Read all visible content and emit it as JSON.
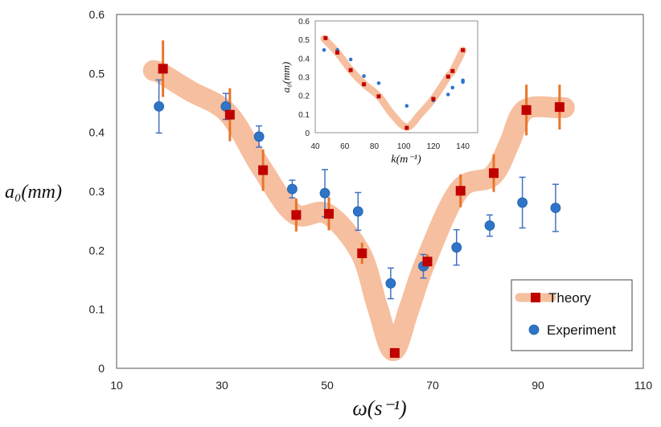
{
  "chart_data": [
    {
      "type": "scatter",
      "role": "main",
      "xlabel": "ω(s⁻¹)",
      "ylabel": "a₀(mm)",
      "xlim": [
        10,
        110
      ],
      "ylim": [
        0,
        0.6
      ],
      "x_ticks": [
        10,
        30,
        50,
        70,
        90,
        110
      ],
      "y_ticks": [
        0,
        0.1,
        0.2,
        0.3,
        0.4,
        0.5,
        0.6
      ],
      "x_tick_labels": [
        "10",
        "30",
        "50",
        "70",
        "90",
        "110"
      ],
      "y_tick_labels": [
        "0",
        "0.1",
        "0.2",
        "0.3",
        "0.4",
        "0.5",
        "0.6"
      ],
      "legend": {
        "position": "bottom-right",
        "entries": [
          "Theory",
          "Experiment"
        ]
      },
      "series": [
        {
          "name": "Theory",
          "marker": "square",
          "color": "#c00000",
          "errcolor": "#e8742a",
          "bandcolor": "#f6bf9f",
          "x": [
            18.5,
            31.2,
            37.5,
            43.8,
            50.0,
            56.3,
            62.5,
            68.7,
            75.0,
            81.3,
            87.5,
            93.8
          ],
          "y": [
            0.508,
            0.43,
            0.336,
            0.26,
            0.262,
            0.195,
            0.026,
            0.181,
            0.301,
            0.331,
            0.438,
            0.443
          ],
          "err": [
            0.048,
            0.045,
            0.035,
            0.028,
            0.028,
            0.018,
            0.004,
            0.012,
            0.028,
            0.032,
            0.043,
            0.038
          ]
        },
        {
          "name": "Experiment",
          "marker": "circle",
          "color": "#2e75c8",
          "errcolor": "#4472c4",
          "x": [
            18.5,
            31.2,
            37.5,
            43.8,
            50.0,
            56.3,
            62.5,
            68.7,
            75.0,
            81.3,
            87.5,
            93.8
          ],
          "y": [
            0.444,
            0.444,
            0.393,
            0.304,
            0.297,
            0.266,
            0.144,
            0.173,
            0.205,
            0.242,
            0.281,
            0.272
          ],
          "err": [
            0.045,
            0.022,
            0.018,
            0.015,
            0.04,
            0.032,
            0.026,
            0.02,
            0.03,
            0.018,
            0.043,
            0.04
          ]
        }
      ],
      "band": {
        "x": [
          17.0,
          18.5,
          24.0,
          31.2,
          37.5,
          43.8,
          50.0,
          56.3,
          59.5,
          62.5,
          65.5,
          68.7,
          75.0,
          81.3,
          84.5,
          87.5,
          93.8,
          95.0
        ],
        "y": [
          0.505,
          0.5,
          0.47,
          0.432,
          0.34,
          0.262,
          0.262,
          0.196,
          0.105,
          0.03,
          0.1,
          0.182,
          0.302,
          0.326,
          0.38,
          0.438,
          0.442,
          0.442
        ]
      }
    },
    {
      "type": "scatter",
      "role": "inset",
      "xlabel": "k(m⁻¹)",
      "ylabel": "a₀(mm)",
      "xlim": [
        40,
        150
      ],
      "ylim": [
        0,
        0.6
      ],
      "x_ticks": [
        40,
        60,
        80,
        100,
        120,
        140
      ],
      "y_ticks": [
        0,
        0.1,
        0.2,
        0.3,
        0.4,
        0.5
      ],
      "x_tick_labels": [
        "40",
        "60",
        "80",
        "100",
        "120",
        "140"
      ],
      "y_tick_labels": [
        "0",
        "0.1",
        "0.2",
        "0.3",
        "0.4",
        "0.5"
      ],
      "y_top_label": "0.6",
      "series": [
        {
          "name": "Theory",
          "marker": "square",
          "color": "#c00000",
          "x": [
            47,
            55,
            64,
            73,
            83,
            102,
            120,
            130,
            133,
            140
          ],
          "y": [
            0.508,
            0.43,
            0.336,
            0.26,
            0.195,
            0.026,
            0.181,
            0.301,
            0.331,
            0.443
          ]
        },
        {
          "name": "Experiment",
          "marker": "circle",
          "color": "#2e75c8",
          "x": [
            46,
            55,
            64,
            73,
            83,
            102,
            120,
            130,
            133,
            140,
            140
          ],
          "y": [
            0.444,
            0.444,
            0.393,
            0.304,
            0.266,
            0.144,
            0.173,
            0.205,
            0.242,
            0.281,
            0.272
          ]
        }
      ],
      "band": {
        "x": [
          46,
          55,
          64,
          73,
          83,
          92,
          102,
          111,
          120,
          130,
          133,
          140
        ],
        "y": [
          0.505,
          0.43,
          0.336,
          0.262,
          0.196,
          0.1,
          0.03,
          0.1,
          0.182,
          0.302,
          0.33,
          0.442
        ]
      }
    }
  ]
}
